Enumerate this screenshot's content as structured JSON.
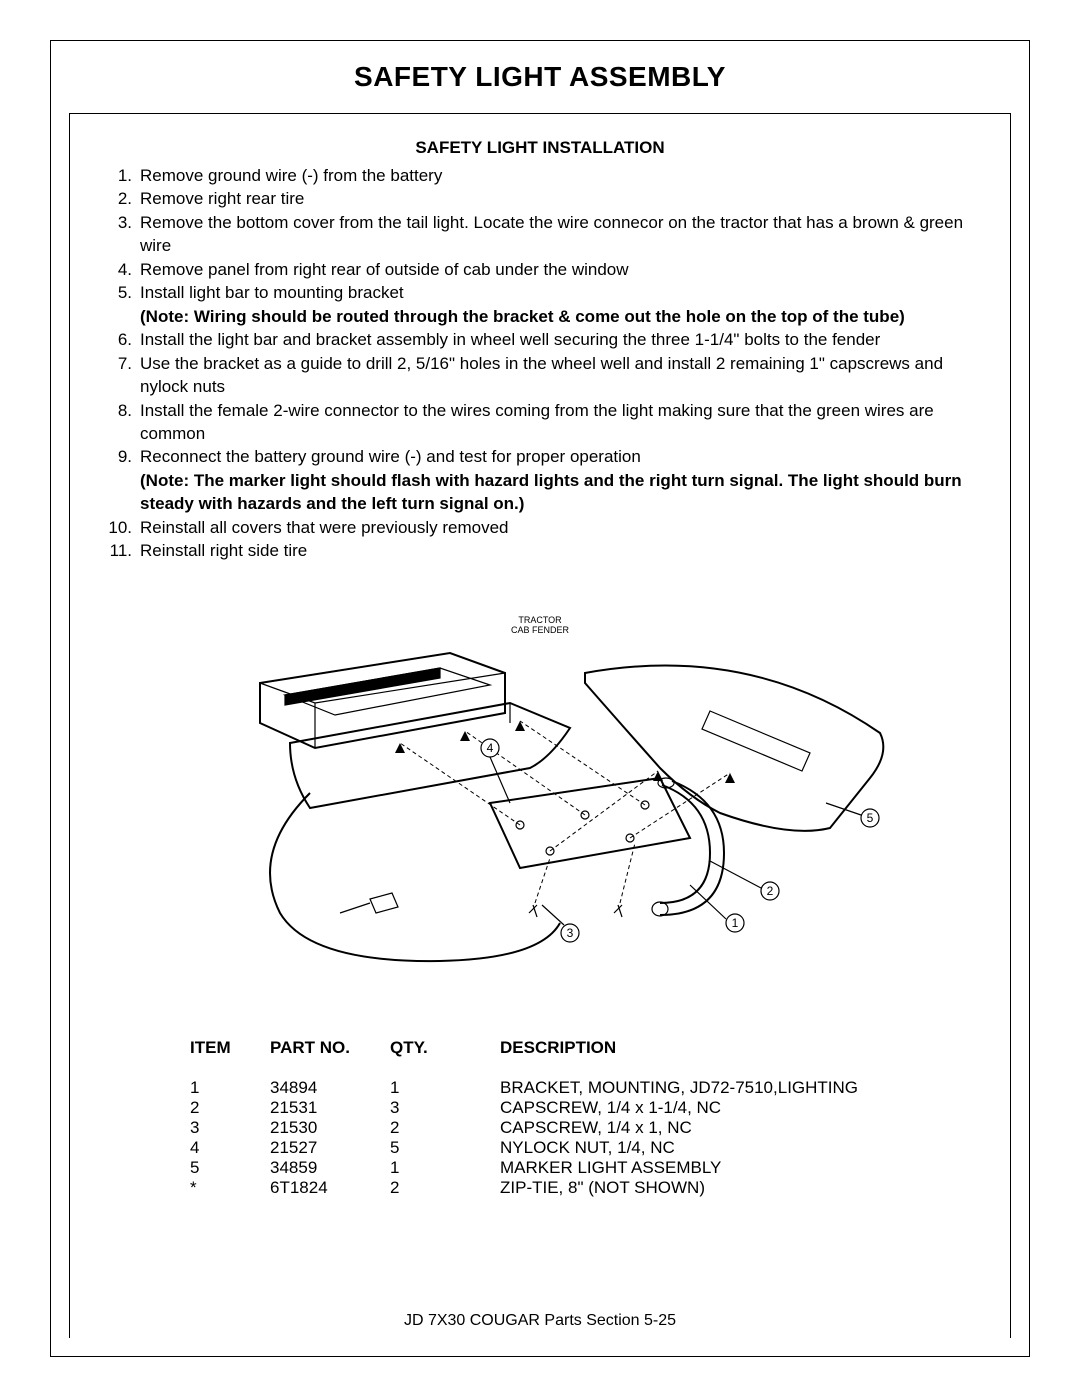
{
  "page": {
    "title": "SAFETY LIGHT ASSEMBLY",
    "footer": "JD 7X30 COUGAR  Parts Section   5-25"
  },
  "install": {
    "heading": "SAFETY LIGHT INSTALLATION",
    "steps": [
      {
        "n": "1.",
        "text": "Remove ground wire (-) from the battery"
      },
      {
        "n": "2.",
        "text": "Remove right rear tire"
      },
      {
        "n": "3.",
        "text": "Remove the bottom cover from the tail light.  Locate the wire connecor on the tractor that has a brown & green wire"
      },
      {
        "n": "4.",
        "text": "Remove panel from right rear of outside of cab under the window"
      },
      {
        "n": "5.",
        "text": "Install light bar to mounting bracket",
        "note": "(Note: Wiring should be routed through the bracket & come out the hole on the top of the tube)"
      },
      {
        "n": "6.",
        "text": "Install the light bar and bracket assembly in wheel well securing the three 1-1/4\" bolts to the fender"
      },
      {
        "n": "7.",
        "text": "Use the bracket as a guide to drill 2, 5/16\" holes in the wheel well and install 2 remaining 1\" capscrews and nylock nuts"
      },
      {
        "n": "8.",
        "text": "Install the female 2-wire connector to the wires coming from the light making sure that the green wires are common"
      },
      {
        "n": "9.",
        "text": "Reconnect the battery ground wire (-) and test for proper operation",
        "note": "(Note: The marker light should flash with hazard lights and the right turn signal. The light should burn steady with hazards and the left turn signal on.)"
      },
      {
        "n": "10.",
        "text": "Reinstall all covers that were previously removed"
      },
      {
        "n": "11.",
        "text": "Reinstall right side tire"
      }
    ]
  },
  "diagram": {
    "label_top": "TRACTOR\nCAB FENDER",
    "callouts": [
      "1",
      "2",
      "3",
      "4",
      "5"
    ],
    "stroke": "#000000",
    "stroke_width": 1.2,
    "dash": "4,3",
    "fill": "#ffffff",
    "font_small": 9,
    "font_callout": 12
  },
  "parts_table": {
    "headers": {
      "item": "ITEM",
      "partno": "PART NO.",
      "qty": "QTY.",
      "desc": "DESCRIPTION"
    },
    "rows": [
      {
        "item": "1",
        "partno": "34894",
        "qty": "1",
        "desc": "BRACKET, MOUNTING, JD72-7510,LIGHTING"
      },
      {
        "item": "2",
        "partno": "21531",
        "qty": "3",
        "desc": "CAPSCREW, 1/4 x 1-1/4, NC"
      },
      {
        "item": "3",
        "partno": "21530",
        "qty": "2",
        "desc": "CAPSCREW, 1/4 x 1, NC"
      },
      {
        "item": "4",
        "partno": "21527",
        "qty": "5",
        "desc": "NYLOCK NUT, 1/4, NC"
      },
      {
        "item": "5",
        "partno": "34859",
        "qty": "1",
        "desc": "MARKER LIGHT ASSEMBLY"
      },
      {
        "item": "*",
        "partno": "6T1824",
        "qty": "2",
        "desc": "ZIP-TIE, 8\" (NOT SHOWN)"
      }
    ]
  }
}
